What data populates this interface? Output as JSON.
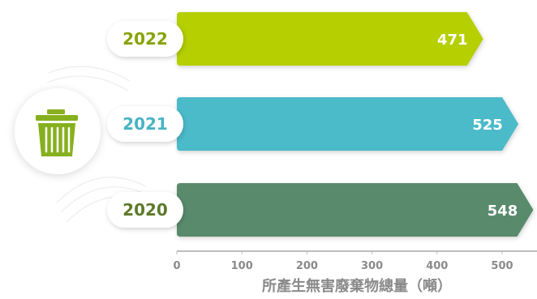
{
  "chart_data": {
    "type": "bar",
    "orientation": "horizontal",
    "categories": [
      "2022",
      "2021",
      "2020"
    ],
    "values": [
      471,
      525,
      548
    ],
    "xlabel": "所產生無害廢棄物總量（噸）",
    "xlim": [
      0,
      550
    ],
    "xticks": [
      0,
      100,
      200,
      300,
      400,
      500
    ],
    "grid": false,
    "colors": [
      "#b5cf00",
      "#4cbac9",
      "#5a8a6c"
    ],
    "label_colors": [
      "#86a300",
      "#48b3c4",
      "#5d7a2b"
    ]
  },
  "icon": "trash-can-icon"
}
